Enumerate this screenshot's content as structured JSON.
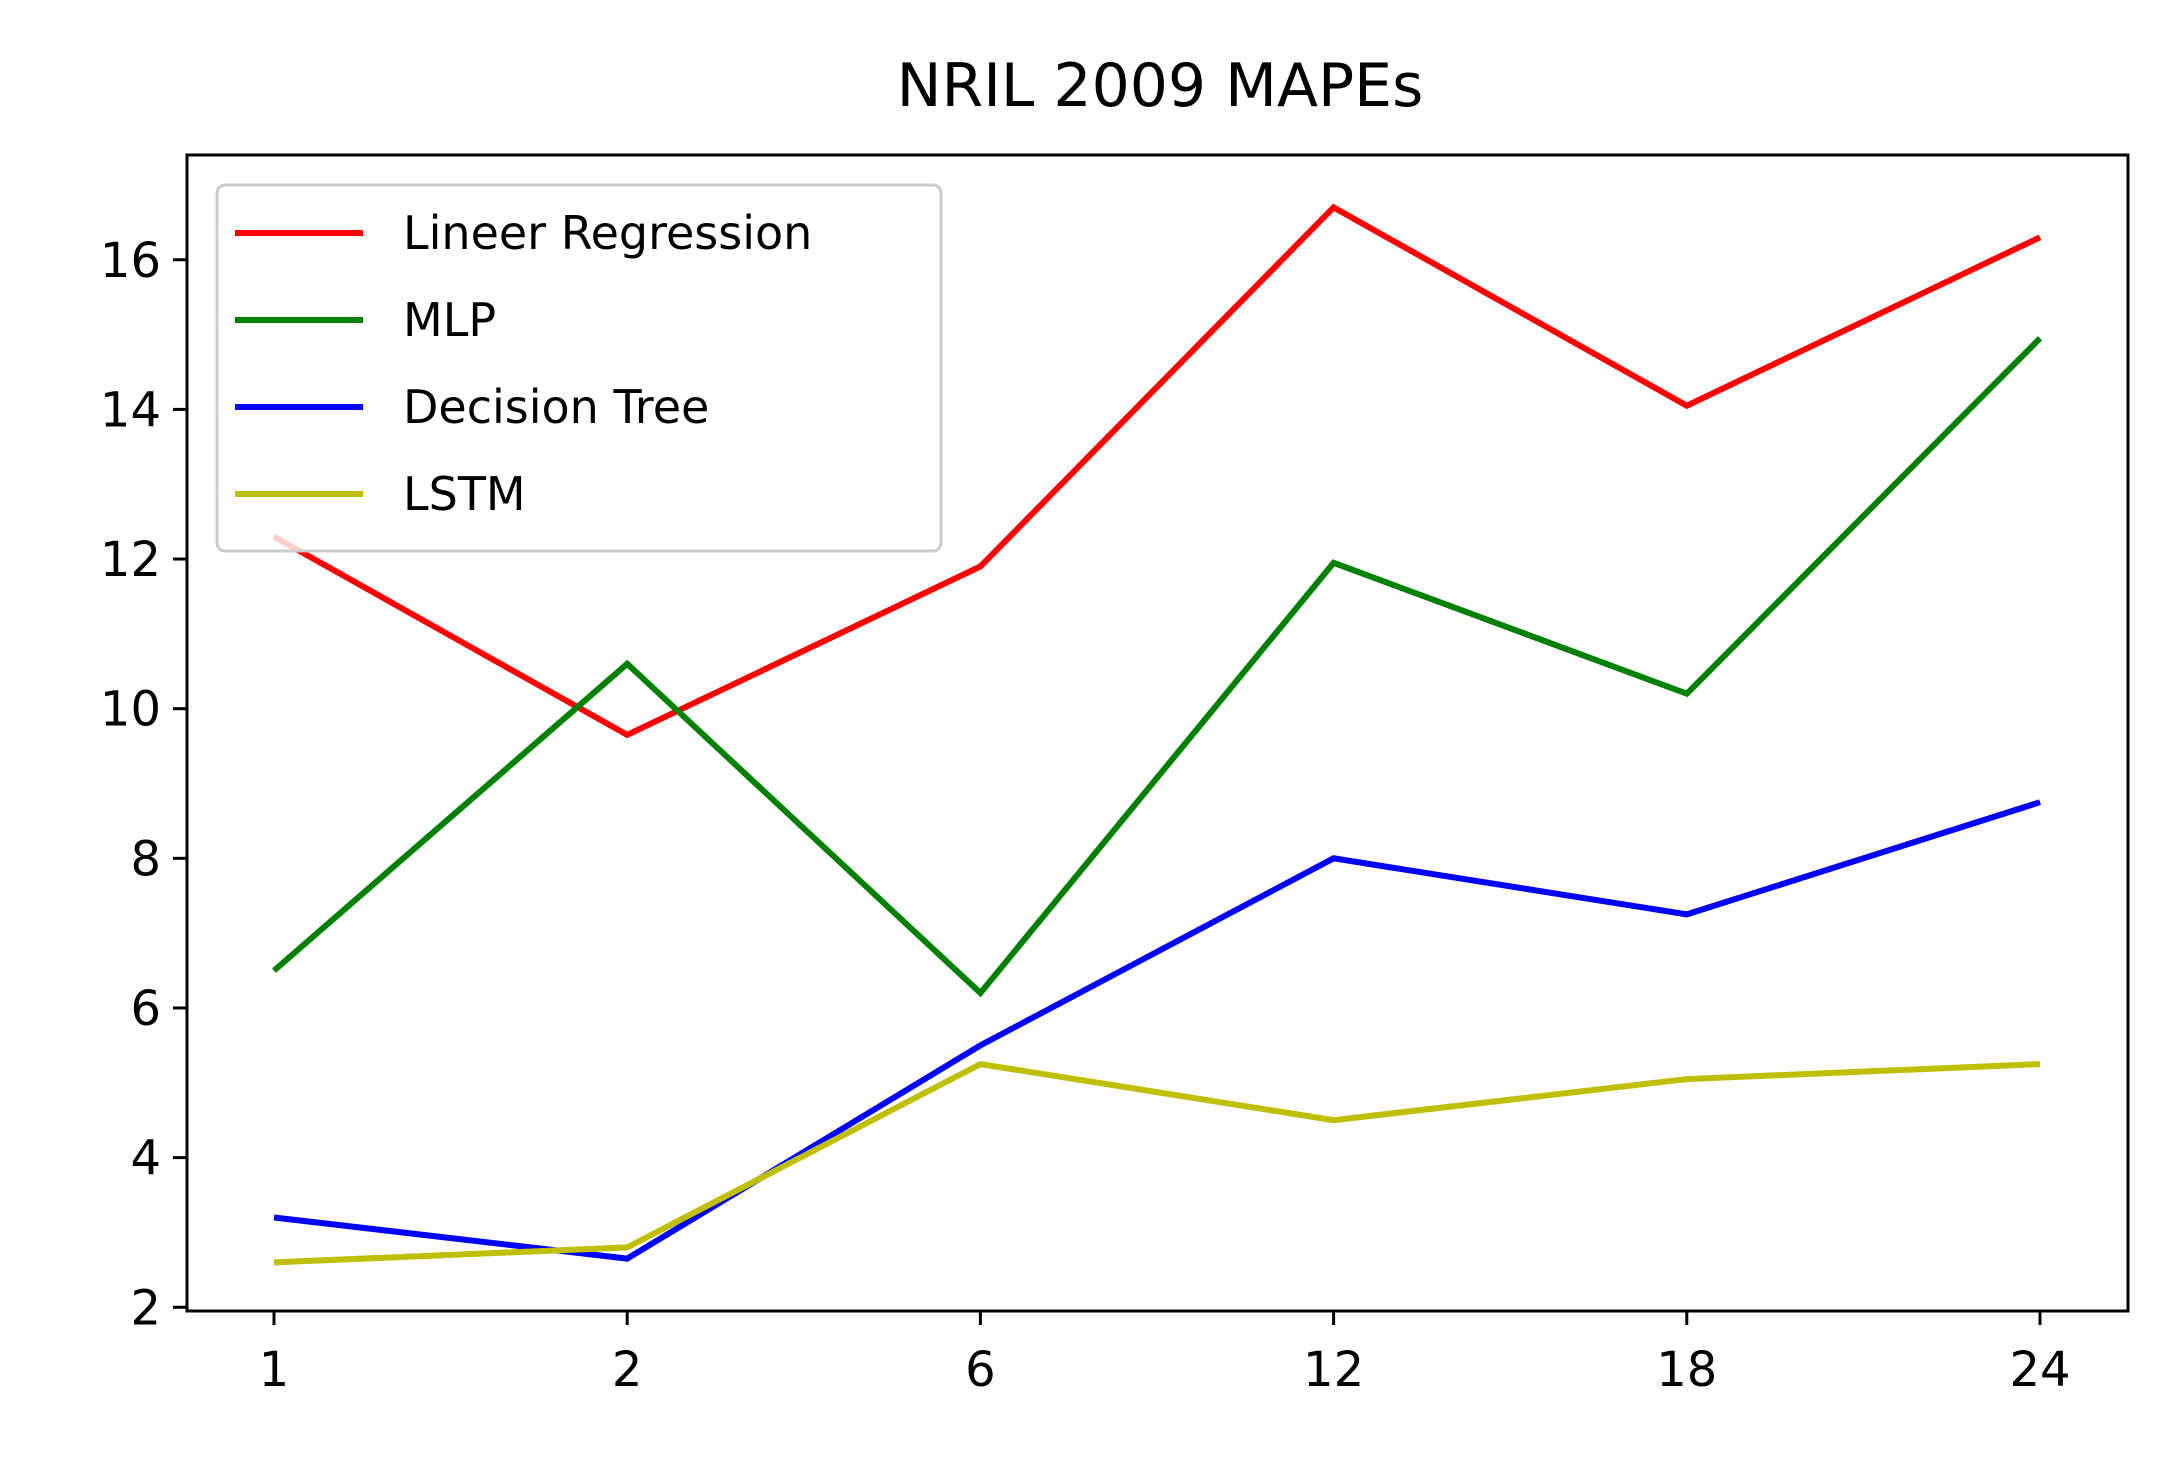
{
  "chart_data": {
    "type": "line",
    "title": "NRIL  2009 MAPEs",
    "xlabel": "",
    "ylabel": "",
    "categories": [
      "1",
      "2",
      "6",
      "12",
      "18",
      "24"
    ],
    "yticks": [
      "2",
      "4",
      "6",
      "8",
      "10",
      "12",
      "14",
      "16"
    ],
    "ylim": [
      1.95,
      17.4
    ],
    "grid": false,
    "legend": "top-left",
    "series": [
      {
        "name": "Lineer Regression",
        "color": "#ff0000",
        "values": [
          12.3,
          9.65,
          11.9,
          16.7,
          14.05,
          16.3
        ]
      },
      {
        "name": "MLP",
        "color": "#008000",
        "values": [
          6.5,
          10.6,
          6.2,
          11.95,
          10.2,
          14.95
        ]
      },
      {
        "name": "Decision Tree",
        "color": "#0000ff",
        "values": [
          3.2,
          2.65,
          5.5,
          8.0,
          7.25,
          8.75
        ]
      },
      {
        "name": "LSTM",
        "color": "#bfbf00",
        "values": [
          2.6,
          2.8,
          5.25,
          4.5,
          5.05,
          5.25
        ]
      }
    ]
  }
}
